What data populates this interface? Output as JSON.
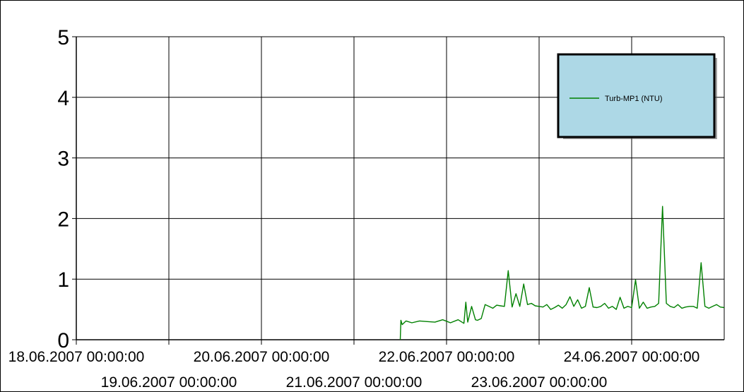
{
  "chart_data": {
    "type": "line",
    "title": "",
    "xlabel": "",
    "ylabel": "",
    "ylim": [
      0,
      5
    ],
    "xlim": [
      "2007-06-18 00:00:00",
      "2007-06-25 00:00:00"
    ],
    "yticks": [
      "0",
      "1",
      "2",
      "3",
      "4",
      "5"
    ],
    "xticks_row1": [
      "18.06.2007 00:00:00",
      "20.06.2007 00:00:00",
      "22.06.2007 00:00:00",
      "24.06.2007 00:00:00"
    ],
    "xticks_row2": [
      "19.06.2007 00:00:00",
      "21.06.2007 00:00:00",
      "23.06.2007 00:00:00"
    ],
    "grid": true,
    "legend_position": "top-right",
    "legend_bg": "#add8e6",
    "series": [
      {
        "name": "Turb-MP1 (NTU)",
        "color": "#008000",
        "x": [
          "2007-06-21 12:00",
          "2007-06-21 12:10",
          "2007-06-21 12:30",
          "2007-06-21 13:30",
          "2007-06-21 15:00",
          "2007-06-21 17:00",
          "2007-06-21 19:00",
          "2007-06-21 21:00",
          "2007-06-21 23:00",
          "2007-06-22 01:00",
          "2007-06-22 03:00",
          "2007-06-22 04:30",
          "2007-06-22 05:00",
          "2007-06-22 05:30",
          "2007-06-22 06:30",
          "2007-06-22 07:30",
          "2007-06-22 08:00",
          "2007-06-22 09:00",
          "2007-06-22 10:00",
          "2007-06-22 11:00",
          "2007-06-22 12:00",
          "2007-06-22 13:00",
          "2007-06-22 14:00",
          "2007-06-22 15:00",
          "2007-06-22 16:00",
          "2007-06-22 17:00",
          "2007-06-22 18:00",
          "2007-06-22 19:00",
          "2007-06-22 20:00",
          "2007-06-22 21:00",
          "2007-06-22 22:00",
          "2007-06-22 23:00",
          "2007-06-23 00:00",
          "2007-06-23 01:00",
          "2007-06-23 02:00",
          "2007-06-23 03:00",
          "2007-06-23 04:00",
          "2007-06-23 05:00",
          "2007-06-23 06:00",
          "2007-06-23 07:00",
          "2007-06-23 08:00",
          "2007-06-23 09:00",
          "2007-06-23 10:00",
          "2007-06-23 11:00",
          "2007-06-23 12:00",
          "2007-06-23 13:00",
          "2007-06-23 14:00",
          "2007-06-23 15:00",
          "2007-06-23 16:00",
          "2007-06-23 17:00",
          "2007-06-23 18:00",
          "2007-06-23 19:00",
          "2007-06-23 20:00",
          "2007-06-23 21:00",
          "2007-06-23 22:00",
          "2007-06-23 23:00",
          "2007-06-24 00:00",
          "2007-06-24 01:00",
          "2007-06-24 02:00",
          "2007-06-24 03:00",
          "2007-06-24 04:00",
          "2007-06-24 05:00",
          "2007-06-24 06:00",
          "2007-06-24 07:00",
          "2007-06-24 08:00",
          "2007-06-24 09:00",
          "2007-06-24 10:00",
          "2007-06-24 11:00",
          "2007-06-24 12:00",
          "2007-06-24 13:00",
          "2007-06-24 14:00",
          "2007-06-24 15:00",
          "2007-06-24 16:00",
          "2007-06-24 17:00",
          "2007-06-24 18:00",
          "2007-06-24 19:00",
          "2007-06-24 20:00",
          "2007-06-24 21:00",
          "2007-06-24 22:00",
          "2007-06-24 23:00",
          "2007-06-24 23:59"
        ],
        "values": [
          0.0,
          0.32,
          0.25,
          0.31,
          0.28,
          0.31,
          0.3,
          0.29,
          0.33,
          0.28,
          0.33,
          0.27,
          0.62,
          0.29,
          0.55,
          0.33,
          0.32,
          0.35,
          0.58,
          0.55,
          0.52,
          0.57,
          0.56,
          0.55,
          1.14,
          0.54,
          0.76,
          0.55,
          0.92,
          0.58,
          0.6,
          0.56,
          0.55,
          0.54,
          0.58,
          0.5,
          0.53,
          0.57,
          0.52,
          0.58,
          0.71,
          0.55,
          0.66,
          0.52,
          0.55,
          0.86,
          0.54,
          0.53,
          0.55,
          0.6,
          0.52,
          0.55,
          0.5,
          0.7,
          0.52,
          0.55,
          0.53,
          0.99,
          0.52,
          0.62,
          0.52,
          0.54,
          0.55,
          0.6,
          2.2,
          0.6,
          0.55,
          0.53,
          0.58,
          0.52,
          0.54,
          0.55,
          0.55,
          0.52,
          1.27,
          0.55,
          0.52,
          0.55,
          0.58,
          0.54,
          0.53
        ]
      }
    ]
  }
}
